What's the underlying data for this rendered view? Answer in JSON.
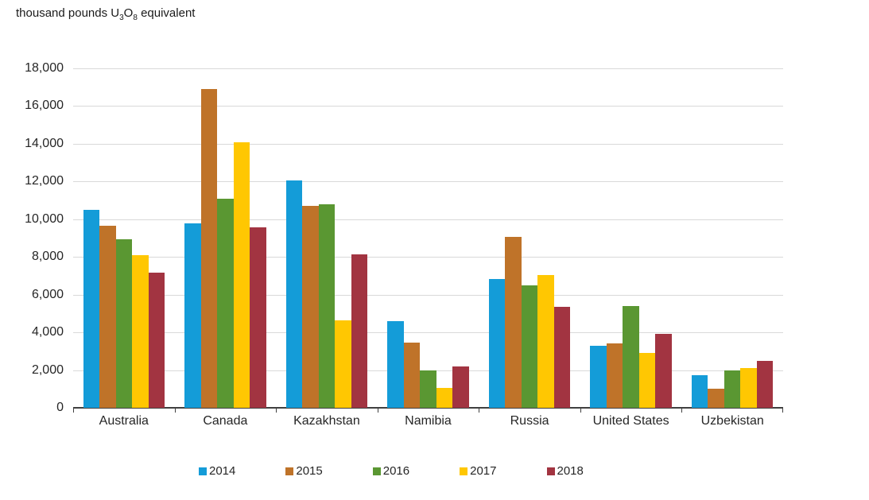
{
  "title": {
    "prefix": "thousand pounds U",
    "sub_a": "3",
    "mid": "O",
    "sub_b": "8",
    "suffix": " equivalent"
  },
  "chart_data": {
    "type": "bar",
    "title": "thousand pounds U3O8 equivalent",
    "categories": [
      "Australia",
      "Canada",
      "Kazakhstan",
      "Namibia",
      "Russia",
      "United States",
      "Uzbekistan"
    ],
    "series": [
      {
        "name": "2014",
        "color": "#149CD8",
        "values": [
          10500,
          9800,
          12050,
          4600,
          6850,
          3300,
          1750
        ]
      },
      {
        "name": "2015",
        "color": "#BF7329",
        "values": [
          9650,
          16900,
          10700,
          3450,
          9050,
          3400,
          1000
        ]
      },
      {
        "name": "2016",
        "color": "#5A9732",
        "values": [
          8950,
          11100,
          10800,
          2000,
          6500,
          5400,
          2000
        ]
      },
      {
        "name": "2017",
        "color": "#FFC702",
        "values": [
          8100,
          14100,
          4650,
          1050,
          7050,
          2900,
          2100
        ]
      },
      {
        "name": "2018",
        "color": "#A23441",
        "values": [
          7150,
          9550,
          8150,
          2200,
          5350,
          3900,
          2500
        ]
      }
    ],
    "ylim": [
      0,
      18000
    ],
    "ytick_step": 2000,
    "yticks": [
      "0",
      "2,000",
      "4,000",
      "6,000",
      "8,000",
      "10,000",
      "12,000",
      "14,000",
      "16,000",
      "18,000"
    ],
    "grid": "horizontal",
    "legend_position": "bottom",
    "legend": [
      "2014",
      "2015",
      "2016",
      "2017",
      "2018"
    ]
  },
  "colors": {
    "gridline": "#D9D9D9",
    "axis": "#404040",
    "text": "#262626"
  }
}
